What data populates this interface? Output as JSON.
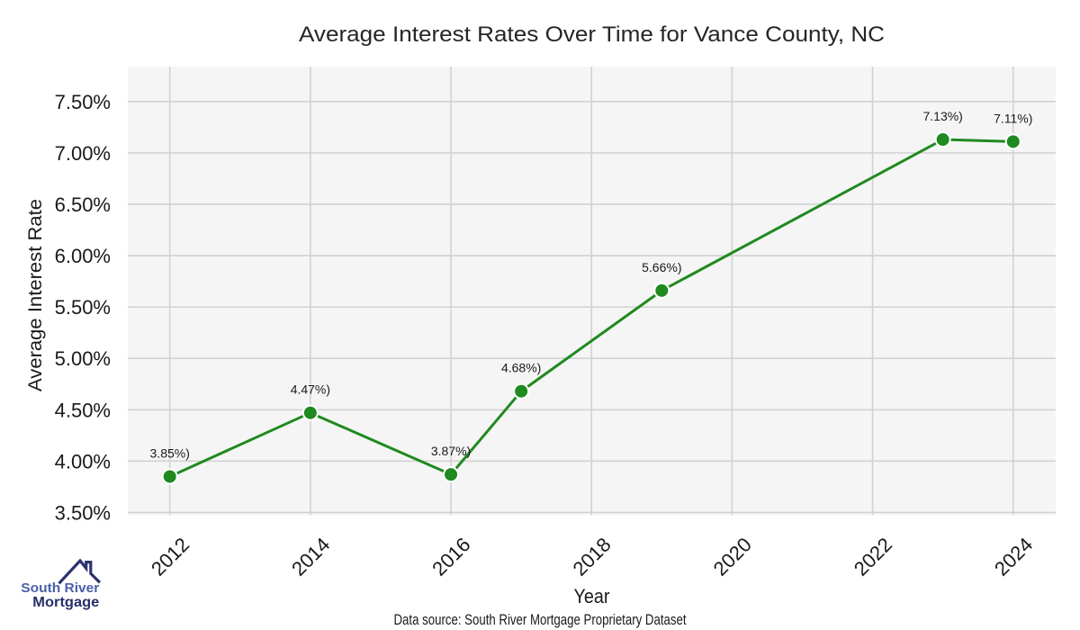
{
  "chart_data": {
    "type": "line",
    "title": "Average Interest Rates Over Time for Vance County, NC",
    "xlabel": "Year",
    "ylabel": "Average Interest Rate",
    "x": [
      2012,
      2014,
      2016,
      2017,
      2019,
      2023,
      2024
    ],
    "values": [
      3.85,
      4.47,
      3.87,
      4.68,
      5.66,
      7.13,
      7.11
    ],
    "point_labels": [
      "3.85%)",
      "4.47%)",
      "3.87%)",
      "4.68%)",
      "5.66%)",
      "7.13%)",
      "7.11%)"
    ],
    "xtick_values": [
      2012,
      2014,
      2016,
      2018,
      2020,
      2022,
      2024
    ],
    "xtick_labels": [
      "2012",
      "2014",
      "2016",
      "2018",
      "2020",
      "2022",
      "2024"
    ],
    "ytick_values": [
      3.5,
      4.0,
      4.5,
      5.0,
      5.5,
      6.0,
      6.5,
      7.0,
      7.5
    ],
    "ytick_labels": [
      "3.50%",
      "4.00%",
      "4.50%",
      "5.00%",
      "5.50%",
      "6.00%",
      "6.50%",
      "7.00%",
      "7.50%"
    ],
    "xlim": [
      2011.402,
      2024.605
    ],
    "ylim": [
      3.473,
      7.84
    ],
    "grid": true,
    "legend": false,
    "colors": {
      "line": "#1f8a1f",
      "marker": "#1f8a1f",
      "marker_edge": "#ffffff",
      "panel": "#f5f5f5",
      "gridline": "#d2d2d2",
      "title_text": "#262626",
      "tick_text": "#1a1a1a",
      "label_text": "#1a1a1a"
    }
  },
  "footer": {
    "source_note": "Data source: South River Mortgage Proprietary Dataset"
  },
  "logo": {
    "line1": "South River",
    "line2": "Mortgage",
    "line1_color": "#4a60a8",
    "line2_color": "#272f6a",
    "roof_color": "#2b336f"
  }
}
